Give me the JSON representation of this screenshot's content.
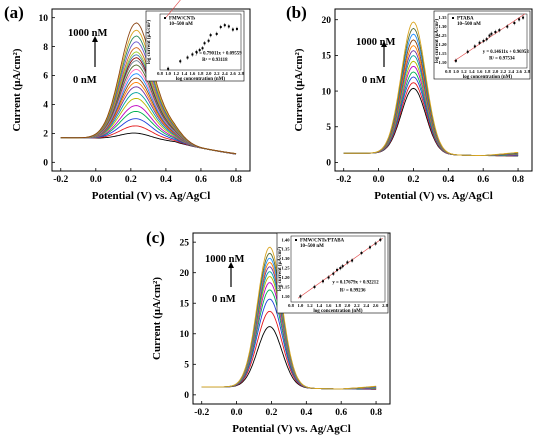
{
  "chart_data": [
    {
      "panel": "(a)",
      "type": "line",
      "xlabel": "Potential (V) vs. Ag/AgCl",
      "ylabel": "Current (μA/cm²)",
      "xlim": [
        -0.25,
        0.88
      ],
      "ylim": [
        -0.6,
        10.6
      ],
      "xticks": [
        -0.2,
        0.0,
        0.2,
        0.4,
        0.6,
        0.8
      ],
      "yticks": [
        0,
        2,
        4,
        6,
        8,
        10
      ],
      "arrow_top_label": "1000 nM",
      "arrow_bottom_label": "0 nM",
      "peak_potential": 0.23,
      "baseline_current": 1.7,
      "peak_heights": [
        0.5,
        1.0,
        1.5,
        2.0,
        2.4,
        2.9,
        3.3,
        3.7,
        4.0,
        4.3,
        4.6,
        4.9,
        5.2,
        5.5,
        5.7,
        5.9,
        6.1,
        6.4,
        6.8,
        7.2,
        7.6,
        8.1
      ],
      "series_colors": [
        "#000000",
        "#e41a1c",
        "#1f3fdb",
        "#00b050",
        "#c000c0",
        "#b8b800",
        "#00a0a0",
        "#7030a0",
        "#ff7f00",
        "#8b4513",
        "#1e90ff",
        "#ff69b4",
        "#556b2f",
        "#708090",
        "#8b0000",
        "#4682b4",
        "#9acd32",
        "#d2691e",
        "#6a5acd",
        "#2e8b57",
        "#daa520",
        "#8b4513"
      ],
      "inset": {
        "legend": "FMW/CNTs",
        "legend_range": "10~500 nM",
        "equation": "y = 0.79011x + 0.09559",
        "r2": "R² = 0.93118",
        "xlabel": "log concentration (nM)",
        "ylabel": "log current (μA/cm²)",
        "xlim": [
          0.8,
          2.8
        ],
        "ylim": [
          0.0,
          0.9
        ],
        "xticks": [
          "0.8",
          "1.0",
          "1.2",
          "1.4",
          "1.6",
          "1.8",
          "2.0",
          "2.2",
          "2.4",
          "2.6",
          "2.8"
        ],
        "yticks": [],
        "points_x": [
          1.0,
          1.3,
          1.48,
          1.6,
          1.7,
          1.78,
          1.85,
          1.9,
          2.0,
          2.05,
          2.2,
          2.3,
          2.4,
          2.5,
          2.6,
          2.7
        ],
        "points_y": [
          0.02,
          0.14,
          0.2,
          0.25,
          0.29,
          0.32,
          0.35,
          0.43,
          0.47,
          0.56,
          0.58,
          0.69,
          0.72,
          0.7,
          0.65,
          0.66
        ],
        "fit": [
          0.79011,
          0.09559
        ]
      }
    },
    {
      "panel": "(b)",
      "type": "line",
      "xlabel": "Potential (V) vs. Ag/AgCl",
      "ylabel": "Current (μA/cm²)",
      "xlim": [
        -0.25,
        0.88
      ],
      "ylim": [
        -1.2,
        21.5
      ],
      "xticks": [
        -0.2,
        0.0,
        0.2,
        0.4,
        0.6,
        0.8
      ],
      "yticks": [
        0,
        5,
        10,
        15,
        20
      ],
      "arrow_top_label": "1000 nM",
      "arrow_bottom_label": "0 nM",
      "peak_potential": 0.2,
      "baseline_current": 1.3,
      "peak_heights": [
        9.2,
        10.0,
        10.8,
        11.5,
        12.3,
        13.0,
        13.8,
        14.5,
        15.2,
        16.0,
        16.8,
        17.6,
        18.5
      ],
      "series_colors": [
        "#000000",
        "#e41a1c",
        "#1f3fdb",
        "#00b050",
        "#c000c0",
        "#b8b800",
        "#00a0a0",
        "#7030a0",
        "#ff7f00",
        "#8b4513",
        "#1e90ff",
        "#556b2f",
        "#daa520"
      ],
      "inset": {
        "legend": "PTABA",
        "legend_range": "10~500 nM",
        "equation": "y = 0.14611x + 0.96953",
        "r2": "R² = 0.97534",
        "xlabel": "log concentration (nM)",
        "ylabel": "log current (μA/cm²)",
        "xlim": [
          0.8,
          2.8
        ],
        "ylim": [
          1.07,
          1.37
        ],
        "xticks": [
          "0.8",
          "1.0",
          "1.2",
          "1.4",
          "1.6",
          "1.8",
          "2.0",
          "2.2",
          "2.4",
          "2.6",
          "2.8"
        ],
        "yticks": [
          "1.10",
          "1.15",
          "1.20",
          "1.25",
          "1.30",
          "1.35"
        ],
        "points_x": [
          1.0,
          1.3,
          1.48,
          1.6,
          1.7,
          1.78,
          1.85,
          1.9,
          2.0,
          2.1,
          2.3,
          2.48,
          2.6,
          2.7
        ],
        "points_y": [
          1.11,
          1.16,
          1.19,
          1.21,
          1.22,
          1.23,
          1.25,
          1.26,
          1.27,
          1.28,
          1.3,
          1.32,
          1.34,
          1.35
        ],
        "fit": [
          0.14611,
          0.96953
        ]
      }
    },
    {
      "panel": "(c)",
      "type": "line",
      "xlabel": "Potential (V) vs. Ag/AgCl",
      "ylabel": "Current (μA/cm²)",
      "xlim": [
        -0.25,
        0.88
      ],
      "ylim": [
        -1.5,
        26.5
      ],
      "xticks": [
        -0.2,
        0.0,
        0.2,
        0.4,
        0.6,
        0.8
      ],
      "yticks": [
        0,
        5,
        10,
        15,
        20,
        25
      ],
      "arrow_top_label": "1000 nM",
      "arrow_bottom_label": "0 nM",
      "peak_potential": 0.19,
      "baseline_current": 1.3,
      "peak_heights": [
        10.0,
        12.5,
        14.5,
        16.0,
        17.2,
        18.2,
        19.0,
        19.8,
        20.5,
        21.2,
        22.0,
        23.0
      ],
      "series_colors": [
        "#000000",
        "#e41a1c",
        "#1f3fdb",
        "#00b050",
        "#c000c0",
        "#b8b800",
        "#00a0a0",
        "#7030a0",
        "#ff7f00",
        "#1e90ff",
        "#556b2f",
        "#daa520"
      ],
      "inset": {
        "legend": "FMW/CNTs/PTABA",
        "legend_range": "10~500 nM",
        "equation": "y = 0.17679x + 0.92212",
        "r2": "R² = 0.99236",
        "xlabel": "log concentration (nM)",
        "ylabel": "log current (μA/cm²)",
        "xlim": [
          0.8,
          2.8
        ],
        "ylim": [
          1.07,
          1.42
        ],
        "xticks": [
          "0.8",
          "1.0",
          "1.2",
          "1.4",
          "1.6",
          "1.8",
          "2.0",
          "2.2",
          "2.4",
          "2.6",
          "2.8"
        ],
        "yticks": [
          "1.10",
          "1.15",
          "1.20",
          "1.25",
          "1.30",
          "1.35",
          "1.40"
        ],
        "points_x": [
          1.0,
          1.3,
          1.48,
          1.6,
          1.7,
          1.78,
          1.85,
          1.9,
          2.0,
          2.1,
          2.3,
          2.48,
          2.6,
          2.7
        ],
        "points_y": [
          1.1,
          1.15,
          1.18,
          1.2,
          1.22,
          1.24,
          1.25,
          1.26,
          1.28,
          1.29,
          1.33,
          1.36,
          1.38,
          1.4
        ],
        "fit": [
          0.17679,
          0.92212
        ]
      }
    }
  ]
}
